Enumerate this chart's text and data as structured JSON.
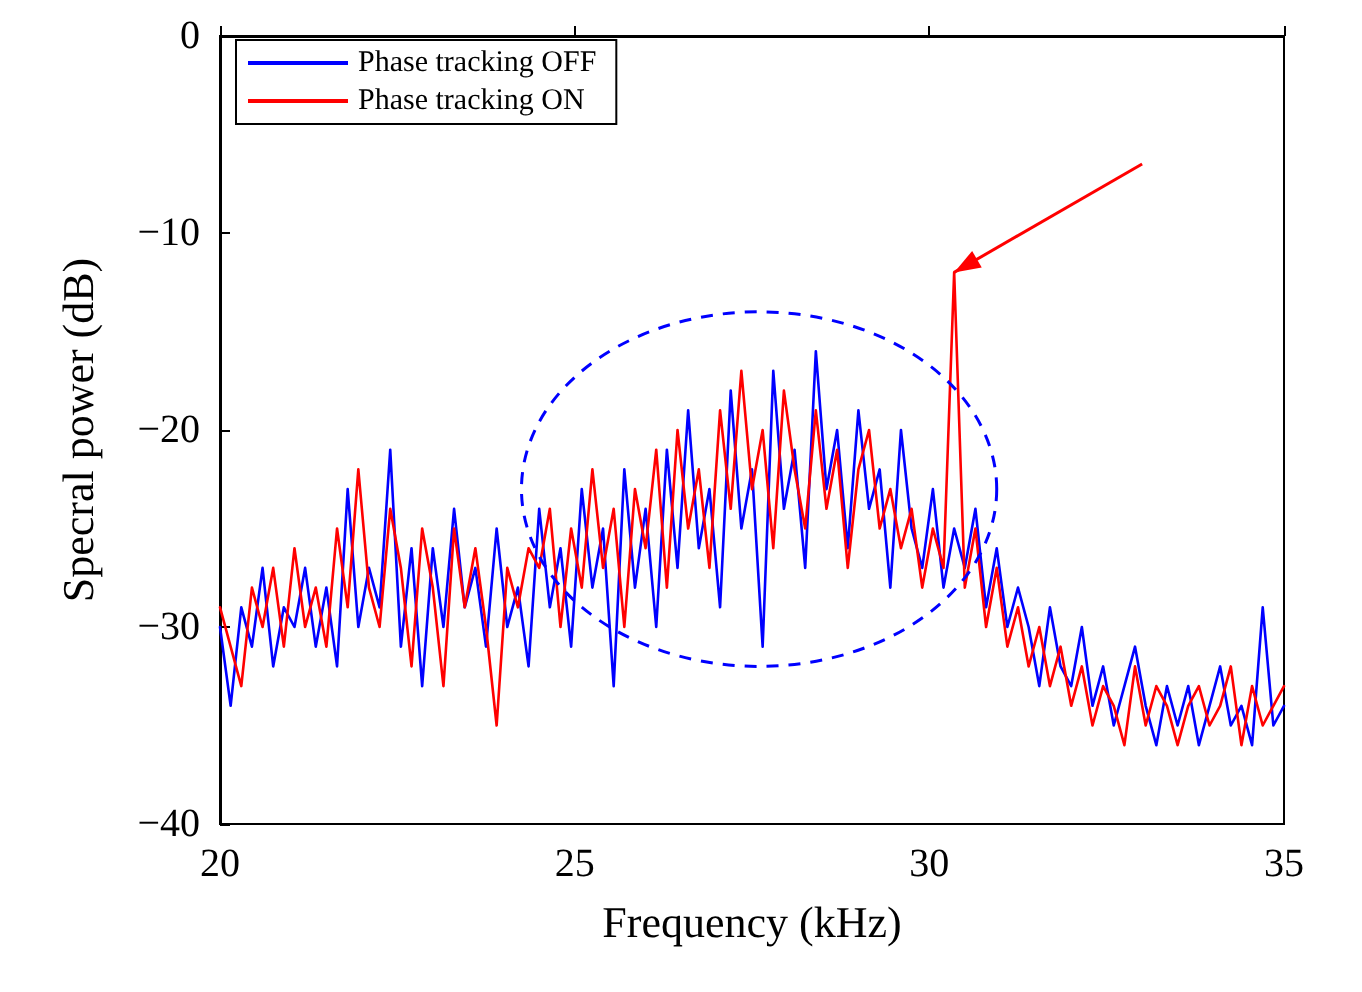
{
  "chart_data": {
    "type": "line",
    "xlabel": "Frequency (kHz)",
    "ylabel": "Specral power (dB)",
    "x": [
      20,
      20.15,
      20.3,
      20.45,
      20.6,
      20.75,
      20.9,
      21.05,
      21.2,
      21.35,
      21.5,
      21.65,
      21.8,
      21.95,
      22.1,
      22.25,
      22.4,
      22.55,
      22.7,
      22.85,
      23,
      23.15,
      23.3,
      23.45,
      23.6,
      23.75,
      23.9,
      24.05,
      24.2,
      24.35,
      24.5,
      24.65,
      24.8,
      24.95,
      25.1,
      25.25,
      25.4,
      25.55,
      25.7,
      25.85,
      26,
      26.15,
      26.3,
      26.45,
      26.6,
      26.75,
      26.9,
      27.05,
      27.2,
      27.35,
      27.5,
      27.65,
      27.8,
      27.95,
      28.1,
      28.25,
      28.4,
      28.55,
      28.7,
      28.85,
      29,
      29.15,
      29.3,
      29.45,
      29.6,
      29.75,
      29.9,
      30.05,
      30.2,
      30.35,
      30.5,
      30.65,
      30.8,
      30.95,
      31.1,
      31.25,
      31.4,
      31.55,
      31.7,
      31.85,
      32,
      32.15,
      32.3,
      32.45,
      32.6,
      32.75,
      32.9,
      33.05,
      33.2,
      33.35,
      33.5,
      33.65,
      33.8,
      33.95,
      34.1,
      34.25,
      34.4,
      34.55,
      34.7,
      34.85,
      35
    ],
    "series": [
      {
        "name": "Phase tracking OFF",
        "color": "#0000ff",
        "values": [
          -30,
          -34,
          -29,
          -31,
          -27,
          -32,
          -29,
          -30,
          -27,
          -31,
          -28,
          -32,
          -23,
          -30,
          -27,
          -29,
          -21,
          -31,
          -26,
          -33,
          -26,
          -30,
          -24,
          -29,
          -27,
          -31,
          -25,
          -30,
          -28,
          -32,
          -24,
          -29,
          -26,
          -31,
          -23,
          -28,
          -25,
          -33,
          -22,
          -28,
          -24,
          -30,
          -21,
          -27,
          -19,
          -26,
          -23,
          -29,
          -18,
          -25,
          -22,
          -31,
          -17,
          -24,
          -21,
          -27,
          -16,
          -23,
          -20,
          -26,
          -19,
          -24,
          -22,
          -28,
          -20,
          -25,
          -27,
          -23,
          -28,
          -25,
          -27,
          -24,
          -29,
          -26,
          -30,
          -28,
          -30,
          -33,
          -29,
          -32,
          -33,
          -30,
          -34,
          -32,
          -35,
          -33,
          -31,
          -34,
          -36,
          -33,
          -35,
          -33,
          -36,
          -34,
          -32,
          -35,
          -34,
          -36,
          -29,
          -35,
          -34
        ]
      },
      {
        "name": "Phase tracking ON",
        "color": "#ff0000",
        "values": [
          -29,
          -31,
          -33,
          -28,
          -30,
          -27,
          -31,
          -26,
          -30,
          -28,
          -31,
          -25,
          -29,
          -22,
          -28,
          -30,
          -24,
          -27,
          -32,
          -25,
          -28,
          -33,
          -25,
          -29,
          -26,
          -30,
          -35,
          -27,
          -29,
          -26,
          -27,
          -24,
          -30,
          -25,
          -28,
          -22,
          -27,
          -24,
          -30,
          -23,
          -26,
          -21,
          -28,
          -20,
          -25,
          -22,
          -27,
          -19,
          -24,
          -17,
          -23,
          -20,
          -26,
          -18,
          -22,
          -25,
          -19,
          -24,
          -21,
          -27,
          -22,
          -20,
          -25,
          -23,
          -26,
          -24,
          -28,
          -25,
          -27,
          -12,
          -28,
          -25,
          -30,
          -27,
          -31,
          -29,
          -32,
          -30,
          -33,
          -31,
          -34,
          -32,
          -35,
          -33,
          -34,
          -36,
          -32,
          -35,
          -33,
          -34,
          -36,
          -34,
          -33,
          -35,
          -34,
          -32,
          -36,
          -33,
          -35,
          -34,
          -33
        ]
      }
    ],
    "xlim": [
      20,
      35
    ],
    "xticks": [
      20,
      25,
      30,
      35
    ],
    "ylim": [
      -40,
      0
    ],
    "yticks": [
      -40,
      -30,
      -20,
      -10,
      0
    ],
    "grid": false,
    "legend": "top left",
    "marker": "none",
    "line_style": "solid"
  }
}
